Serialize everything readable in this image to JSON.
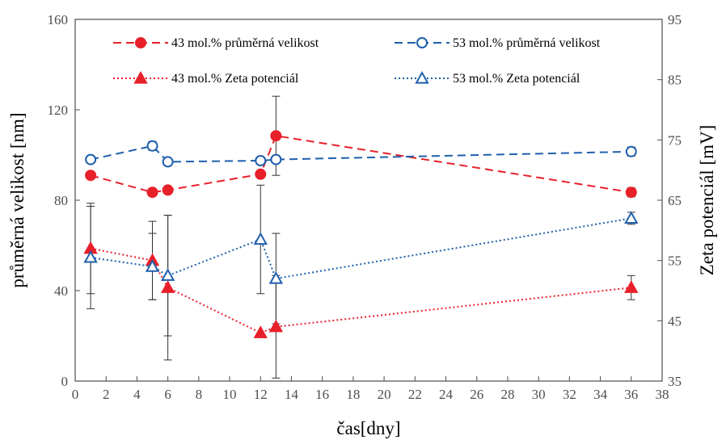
{
  "chart_data": {
    "type": "line",
    "xlabel": "čas[dny]",
    "ylabel_left": "průměrná velikost [nm]",
    "ylabel_right": "Zeta potenciál [mV]",
    "xlim": [
      0,
      38
    ],
    "ylim_left": [
      0,
      160
    ],
    "ylim_right": [
      35,
      95
    ],
    "x_ticks": [
      "0",
      "2",
      "4",
      "6",
      "8",
      "10",
      "12",
      "14",
      "16",
      "18",
      "20",
      "22",
      "24",
      "26",
      "28",
      "30",
      "32",
      "34",
      "36",
      "38"
    ],
    "y_left_ticks": [
      "0",
      "40",
      "80",
      "120",
      "160"
    ],
    "y_right_ticks": [
      "35",
      "45",
      "55",
      "65",
      "75",
      "85",
      "95"
    ],
    "grid": false,
    "legend_position": "top",
    "series": [
      {
        "name": "43 mol.% průměrná velikost",
        "axis": "left",
        "color": "#e8202a",
        "line_style": "dashed",
        "marker": "filled-circle",
        "x": [
          1,
          5,
          6,
          12,
          13,
          36
        ],
        "y": [
          91,
          83.5,
          84.5,
          91.5,
          108.5,
          83.5
        ],
        "error": [
          0,
          0,
          0,
          0,
          17.5,
          2
        ]
      },
      {
        "name": "53 mol.% průměrná velikost",
        "axis": "left",
        "color": "#1f5fad",
        "line_style": "dashed",
        "marker": "open-circle",
        "x": [
          1,
          5,
          6,
          12,
          13,
          36
        ],
        "y": [
          98,
          104,
          97,
          97.5,
          98,
          101.5
        ],
        "error": [
          0,
          2,
          0,
          0,
          0,
          2
        ]
      },
      {
        "name": "43 mol.% Zeta potenciál",
        "axis": "right",
        "color": "#e8202a",
        "line_style": "dotted",
        "marker": "filled-triangle",
        "x": [
          1,
          5,
          6,
          12,
          13,
          36
        ],
        "y": [
          57,
          55,
          50.5,
          43,
          44,
          50.5
        ],
        "error": [
          7.5,
          6.5,
          12,
          0,
          8.5,
          2
        ]
      },
      {
        "name": "53 mol.% Zeta potenciál",
        "axis": "right",
        "color": "#1f5fad",
        "line_style": "dotted",
        "marker": "open-triangle",
        "x": [
          1,
          5,
          6,
          12,
          13,
          36
        ],
        "y": [
          55.5,
          54,
          52.5,
          58.5,
          52,
          62
        ],
        "error": [
          8.5,
          5.5,
          10,
          9,
          7.5,
          1
        ]
      }
    ]
  }
}
